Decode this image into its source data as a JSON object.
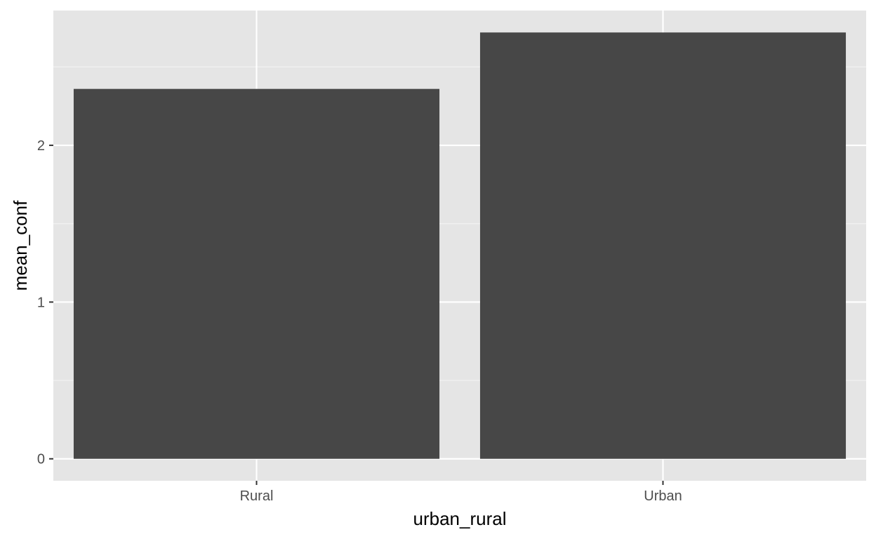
{
  "chart_data": {
    "type": "bar",
    "title": "",
    "xlabel": "urban_rural",
    "ylabel": "mean_conf",
    "categories": [
      "Rural",
      "Urban"
    ],
    "values": [
      2.36,
      2.72
    ],
    "ylim": [
      -0.14,
      2.86
    ],
    "yticks": [
      0,
      1,
      2
    ],
    "ytick_labels": [
      "0",
      "1",
      "2"
    ],
    "grid": true,
    "legend": "none"
  },
  "colors": {
    "panel_background": "#e5e5e5",
    "grid_major": "#ffffff",
    "grid_minor": "#f2f2f2",
    "bar_fill": "#474747",
    "tick_text": "#4d4d4d",
    "axis_title": "#000000"
  }
}
